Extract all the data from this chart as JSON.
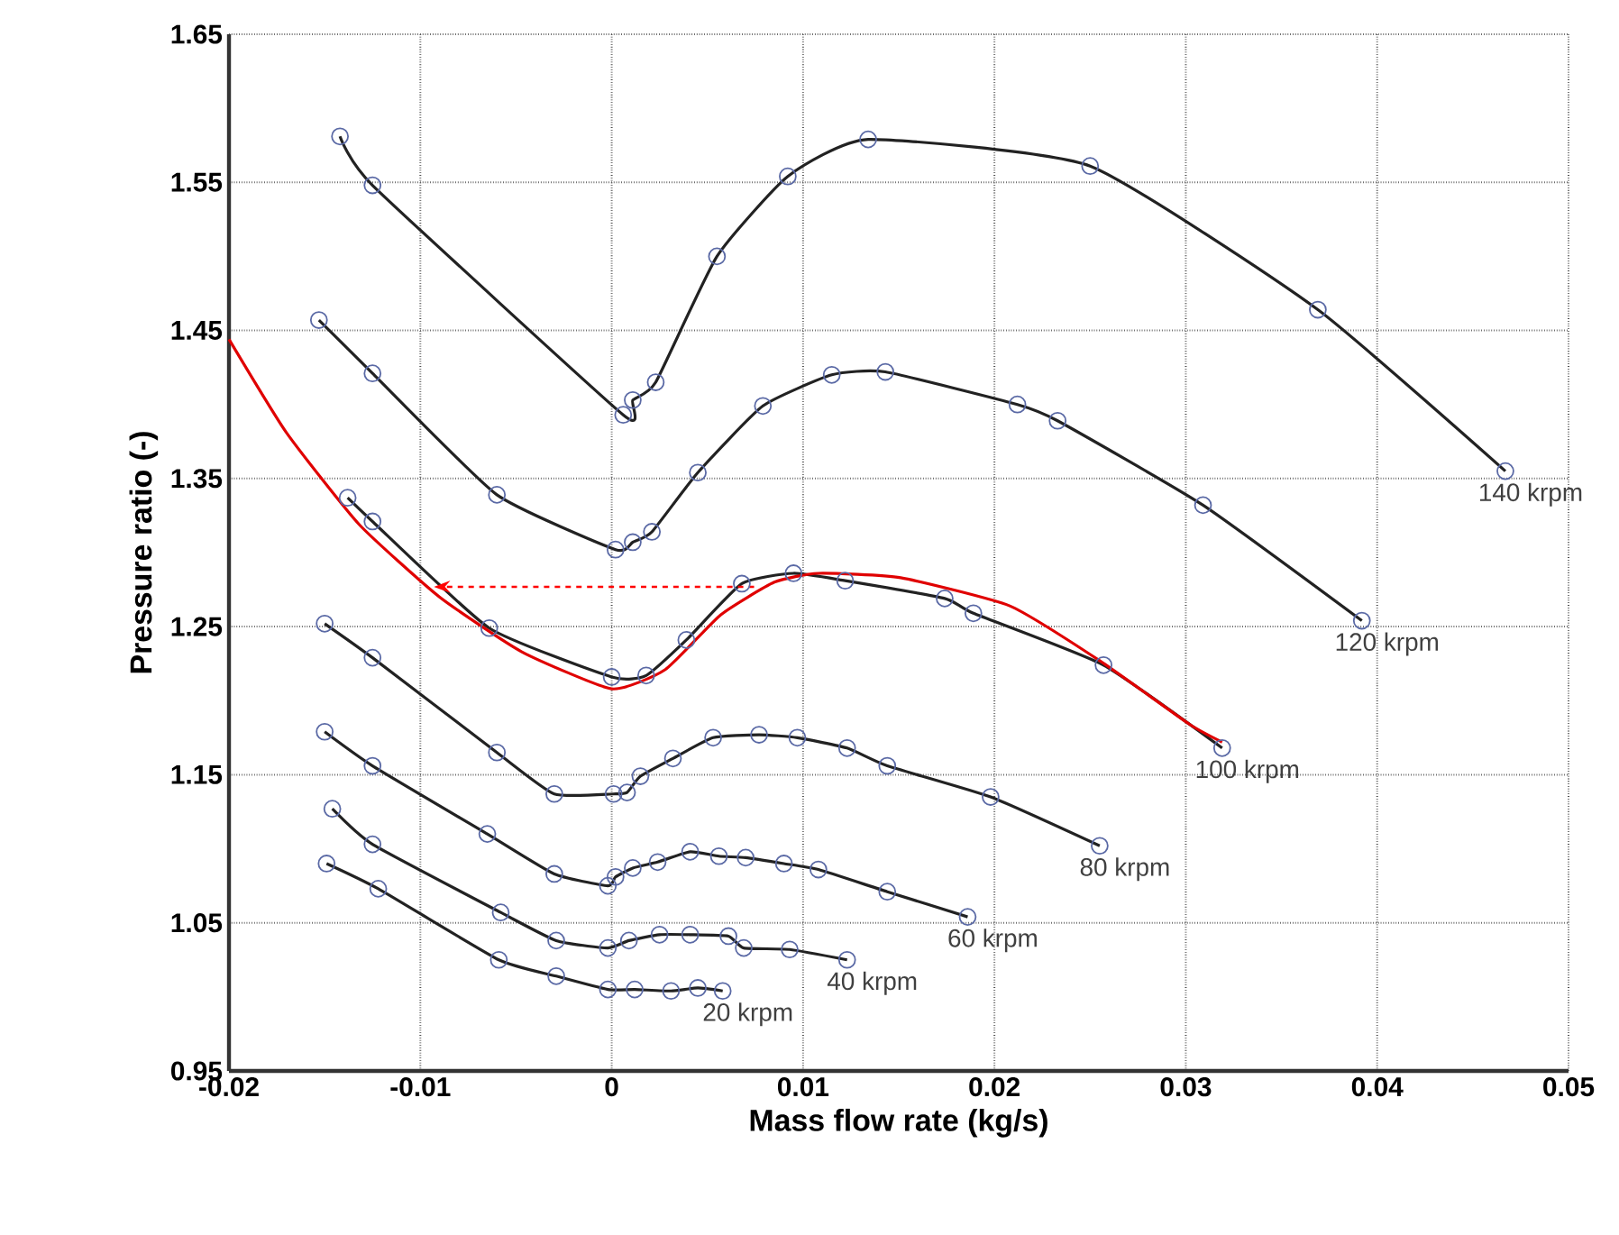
{
  "chart_data": {
    "type": "line",
    "xlabel": "Mass flow rate (kg/s)",
    "ylabel": "Pressure ratio (-)",
    "xlim": [
      -0.02,
      0.05
    ],
    "ylim": [
      0.95,
      1.65
    ],
    "xticks": [
      -0.02,
      -0.01,
      0,
      0.01,
      0.02,
      0.03,
      0.04,
      0.05
    ],
    "yticks": [
      0.95,
      1.05,
      1.15,
      1.25,
      1.35,
      1.45,
      1.55,
      1.65
    ],
    "grid": true,
    "marker": "circle",
    "line_style": "solid",
    "series": [
      {
        "name": "140 krpm",
        "color": "#222222",
        "x": [
          -0.0142,
          -0.0125,
          0.0006,
          0.0011,
          0.0023,
          0.0055,
          0.0092,
          0.0134,
          0.025,
          0.0369,
          0.0467
        ],
        "values": [
          1.581,
          1.548,
          1.393,
          1.403,
          1.415,
          1.5,
          1.554,
          1.579,
          1.561,
          1.464,
          1.355
        ]
      },
      {
        "name": "120 krpm",
        "color": "#222222",
        "x": [
          -0.0153,
          -0.0125,
          -0.006,
          0.0002,
          0.0011,
          0.0021,
          0.0045,
          0.0079,
          0.0115,
          0.0143,
          0.0212,
          0.0233,
          0.0309,
          0.0392
        ],
        "values": [
          1.457,
          1.421,
          1.339,
          1.302,
          1.307,
          1.314,
          1.354,
          1.399,
          1.42,
          1.422,
          1.4,
          1.389,
          1.332,
          1.254
        ]
      },
      {
        "name": "100 krpm",
        "color": "#222222",
        "x": [
          -0.0138,
          -0.0125,
          -0.0064,
          0.0,
          0.0018,
          0.0039,
          0.0068,
          0.0095,
          0.0122,
          0.0174,
          0.0189,
          0.0257,
          0.0319
        ],
        "values": [
          1.337,
          1.321,
          1.249,
          1.216,
          1.217,
          1.241,
          1.279,
          1.286,
          1.281,
          1.269,
          1.259,
          1.224,
          1.168
        ]
      },
      {
        "name": "80 krpm",
        "color": "#222222",
        "x": [
          -0.015,
          -0.0125,
          -0.006,
          -0.003,
          0.0001,
          0.0008,
          0.0015,
          0.0032,
          0.0053,
          0.0077,
          0.0097,
          0.0123,
          0.0144,
          0.0198,
          0.0255
        ],
        "values": [
          1.252,
          1.229,
          1.165,
          1.137,
          1.137,
          1.138,
          1.149,
          1.161,
          1.175,
          1.177,
          1.175,
          1.168,
          1.156,
          1.135,
          1.102
        ]
      },
      {
        "name": "60 krpm",
        "color": "#222222",
        "x": [
          -0.015,
          -0.0125,
          -0.0065,
          -0.003,
          -0.0002,
          0.0002,
          0.0011,
          0.0024,
          0.0041,
          0.0056,
          0.007,
          0.009,
          0.0108,
          0.0144,
          0.0186
        ],
        "values": [
          1.179,
          1.156,
          1.11,
          1.083,
          1.075,
          1.081,
          1.087,
          1.091,
          1.098,
          1.095,
          1.094,
          1.09,
          1.086,
          1.071,
          1.054
        ]
      },
      {
        "name": "40 krpm",
        "color": "#222222",
        "x": [
          -0.0146,
          -0.0125,
          -0.0058,
          -0.0029,
          -0.0002,
          0.0009,
          0.0025,
          0.0041,
          0.0061,
          0.0069,
          0.0093,
          0.0123
        ],
        "values": [
          1.127,
          1.103,
          1.057,
          1.038,
          1.033,
          1.038,
          1.042,
          1.042,
          1.041,
          1.033,
          1.032,
          1.025
        ]
      },
      {
        "name": "20 krpm",
        "color": "#222222",
        "x": [
          -0.0149,
          -0.0122,
          -0.0059,
          -0.0029,
          -0.0002,
          0.0012,
          0.0031,
          0.0045,
          0.0058
        ],
        "values": [
          1.09,
          1.073,
          1.025,
          1.014,
          1.005,
          1.005,
          1.004,
          1.006,
          1.004
        ]
      },
      {
        "color": "#e00000",
        "marker": "none",
        "x": [
          -0.02,
          -0.017,
          -0.0132,
          -0.009,
          -0.0047,
          0.0,
          0.0028,
          0.0057,
          0.0085,
          0.0108,
          0.0151,
          0.0208,
          0.0255,
          0.0302,
          0.0319
        ],
        "values": [
          1.444,
          1.381,
          1.319,
          1.27,
          1.233,
          1.208,
          1.221,
          1.258,
          1.28,
          1.286,
          1.283,
          1.264,
          1.227,
          1.184,
          1.172
        ]
      }
    ]
  }
}
